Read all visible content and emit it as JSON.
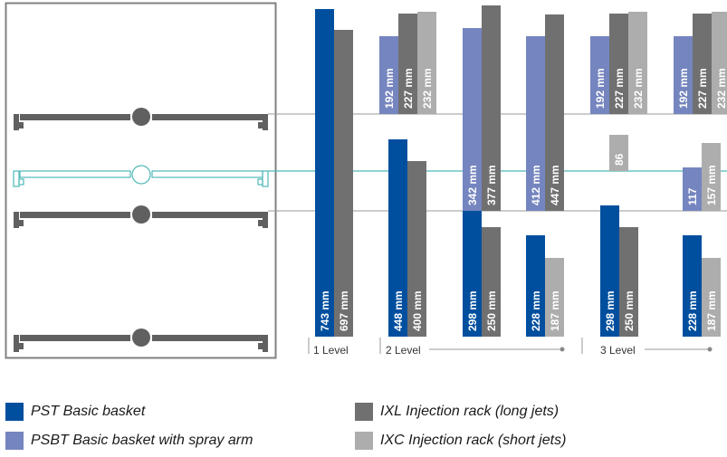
{
  "colors": {
    "pst": "#004f9f",
    "psbt": "#7585bf",
    "ixl": "#707070",
    "ixc": "#adadad",
    "rack": "#606060",
    "teal": "#4fb8b8",
    "frame": "#808080",
    "level_line": "#9a9a9a"
  },
  "level_labels": [
    "1 Level",
    "2 Level",
    "3 Level"
  ],
  "legend": [
    {
      "key": "pst",
      "label": "PST Basic basket"
    },
    {
      "key": "psbt",
      "label": "PSBT Basic basket with spray arm"
    },
    {
      "key": "ixl",
      "label": "IXL Injection rack (long jets)"
    },
    {
      "key": "ixc",
      "label": "IXC Injection rack (short jets)"
    }
  ],
  "chart_data": {
    "type": "bar",
    "unit": "mm",
    "bars": [
      {
        "label": "743 mm",
        "value": 743,
        "series": "pst",
        "group": 0
      },
      {
        "label": "697 mm",
        "value": 697,
        "series": "ixl",
        "group": 0
      },
      {
        "label": "448 mm",
        "value": 448,
        "series": "pst",
        "group": 1
      },
      {
        "label": "400 mm",
        "value": 400,
        "series": "ixl",
        "group": 1
      },
      {
        "label": "192 mm",
        "value": 192,
        "series": "psbt",
        "group": 1
      },
      {
        "label": "227 mm",
        "value": 227,
        "series": "ixl",
        "group": 1
      },
      {
        "label": "232 mm",
        "value": 232,
        "series": "ixc",
        "group": 1
      },
      {
        "label": "298 mm",
        "value": 298,
        "series": "pst",
        "group": 2
      },
      {
        "label": "250 mm",
        "value": 250,
        "series": "ixl",
        "group": 2
      },
      {
        "label": "342 mm",
        "value": 342,
        "series": "psbt",
        "group": 2
      },
      {
        "label": "377 mm",
        "value": 377,
        "series": "ixl",
        "group": 2
      },
      {
        "label": "228 mm",
        "value": 228,
        "series": "pst",
        "group": 3
      },
      {
        "label": "187 mm",
        "value": 187,
        "series": "ixc",
        "group": 3
      },
      {
        "label": "412 mm",
        "value": 412,
        "series": "psbt",
        "group": 3
      },
      {
        "label": "447 mm",
        "value": 447,
        "series": "ixl",
        "group": 3
      },
      {
        "label": "298 mm",
        "value": 298,
        "series": "pst",
        "group": 4
      },
      {
        "label": "250 mm",
        "value": 250,
        "series": "ixl",
        "group": 4
      },
      {
        "label": "86",
        "value": 86,
        "series": "ixc",
        "group": 4
      },
      {
        "label": "192 mm",
        "value": 192,
        "series": "psbt",
        "group": 4
      },
      {
        "label": "227 mm",
        "value": 227,
        "series": "ixl",
        "group": 4
      },
      {
        "label": "232 mm",
        "value": 232,
        "series": "ixc",
        "group": 4
      },
      {
        "label": "228 mm",
        "value": 228,
        "series": "pst",
        "group": 5
      },
      {
        "label": "187 mm",
        "value": 187,
        "series": "ixc",
        "group": 5
      },
      {
        "label": "117",
        "value": 117,
        "series": "psbt",
        "group": 5
      },
      {
        "label": "157 mm",
        "value": 157,
        "series": "ixc",
        "group": 5
      },
      {
        "label": "192 mm",
        "value": 192,
        "series": "psbt",
        "group": 5
      },
      {
        "label": "227 mm",
        "value": 227,
        "series": "ixl",
        "group": 5
      },
      {
        "label": "232 mm",
        "value": 232,
        "series": "ixc",
        "group": 5
      }
    ]
  }
}
